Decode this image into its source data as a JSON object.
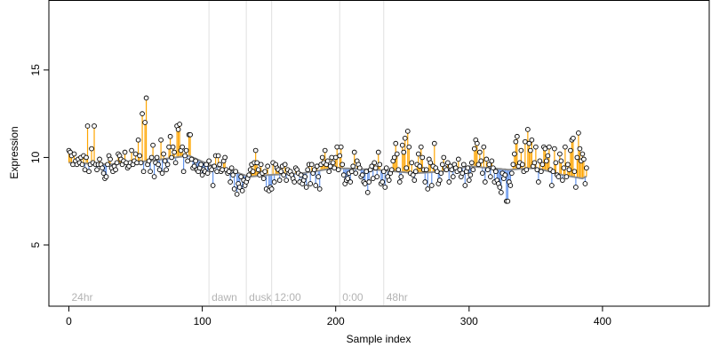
{
  "chart_data": {
    "type": "scatter",
    "title": "",
    "xlabel": "Sample index",
    "ylabel": "Expression",
    "xlim": [
      -15,
      480
    ],
    "ylim": [
      1.5,
      19
    ],
    "x_ticks": [
      0,
      100,
      200,
      300,
      400
    ],
    "y_ticks": [
      5,
      10,
      15
    ],
    "grid": false,
    "baseline_color": "#8c8c8c",
    "above_color": "#ffa500",
    "below_color": "#6495ed",
    "point_fill": "#ffffff",
    "point_stroke": "#000000",
    "vline_color": "#e0e0e0",
    "condition_label_y": 2.0,
    "conditions": [
      {
        "label": "24hr",
        "x": 0,
        "line": false
      },
      {
        "label": "dawn",
        "x": 105,
        "line": true
      },
      {
        "label": "dusk",
        "x": 133,
        "line": true
      },
      {
        "label": "12:00",
        "x": 152,
        "line": true
      },
      {
        "label": "0:00",
        "x": 203,
        "line": true
      },
      {
        "label": "48hr",
        "x": 236,
        "line": true
      }
    ],
    "baseline_anchors": [
      [
        0,
        9.7
      ],
      [
        30,
        9.6
      ],
      [
        60,
        9.8
      ],
      [
        90,
        10.1
      ],
      [
        105,
        9.6
      ],
      [
        120,
        9.3
      ],
      [
        135,
        8.9
      ],
      [
        150,
        9.0
      ],
      [
        175,
        9.1
      ],
      [
        200,
        9.4
      ],
      [
        230,
        9.3
      ],
      [
        260,
        9.1
      ],
      [
        280,
        9.2
      ],
      [
        300,
        9.5
      ],
      [
        330,
        9.3
      ],
      [
        350,
        9.4
      ],
      [
        370,
        9.0
      ],
      [
        385,
        8.8
      ],
      [
        400,
        9.4
      ],
      [
        430,
        9.5
      ],
      [
        465,
        9.7
      ]
    ],
    "values": [
      10.4,
      10.3,
      10.1,
      9.6,
      10.2,
      9.8,
      9.6,
      9.9,
      9.7,
      10.0,
      9.6,
      10.1,
      9.3,
      10.0,
      11.8,
      9.2,
      9.6,
      10.5,
      9.7,
      11.8,
      9.6,
      9.3,
      9.6,
      9.9,
      9.6,
      9.4,
      9.1,
      8.8,
      8.9,
      9.6,
      10.1,
      9.9,
      9.4,
      9.2,
      9.5,
      9.3,
      9.7,
      10.2,
      10.1,
      9.9,
      9.6,
      9.8,
      10.3,
      9.7,
      9.4,
      9.5,
      9.7,
      10.4,
      9.6,
      9.8,
      10.2,
      9.7,
      11.0,
      10.1,
      9.7,
      12.5,
      9.2,
      12.0,
      13.4,
      9.6,
      9.8,
      9.2,
      10.0,
      10.7,
      8.9,
      9.7,
      10.0,
      9.6,
      9.3,
      11.0,
      9.1,
      10.2,
      9.8,
      9.3,
      9.6,
      10.6,
      11.2,
      10.0,
      10.6,
      10.3,
      9.7,
      11.8,
      11.6,
      11.9,
      10.4,
      10.6,
      9.2,
      10.1,
      10.4,
      9.8,
      11.3,
      11.3,
      9.9,
      9.4,
      9.5,
      9.8,
      9.3,
      9.2,
      9.4,
      9.6,
      9.0,
      9.3,
      9.2,
      9.6,
      9.1,
      9.8,
      9.4,
      9.3,
      8.4,
      9.5,
      10.1,
      9.2,
      10.1,
      9.6,
      9.2,
      9.3,
      9.8,
      10.0,
      9.3,
      9.1,
      9.2,
      8.6,
      9.4,
      9.0,
      8.2,
      9.2,
      7.9,
      8.5,
      8.3,
      8.9,
      8.1,
      8.7,
      8.4,
      8.6,
      8.8,
      9.0,
      9.3,
      9.6,
      9.2,
      9.7,
      10.4,
      9.7,
      9.3,
      9.0,
      9.6,
      9.1,
      8.8,
      9.2,
      8.2,
      9.5,
      8.1,
      8.3,
      8.2,
      9.7,
      8.6,
      9.6,
      9.4,
      9.3,
      8.7,
      9.2,
      9.5,
      9.0,
      9.6,
      8.7,
      9.3,
      9.1,
      9.2,
      9.0,
      8.8,
      8.6,
      9.4,
      9.3,
      9.1,
      8.6,
      9.0,
      8.5,
      8.7,
      8.9,
      8.3,
      9.3,
      9.6,
      8.5,
      9.6,
      9.1,
      9.3,
      8.4,
      9.5,
      8.9,
      8.2,
      9.6,
      10.0,
      9.7,
      10.4,
      9.6,
      9.8,
      9.2,
      9.5,
      10.0,
      9.7,
      9.4,
      10.0,
      10.6,
      9.3,
      10.1,
      10.6,
      9.6,
      9.0,
      8.5,
      8.7,
      8.8,
      9.1,
      8.6,
      9.2,
      9.5,
      10.3,
      9.1,
      9.8,
      9.6,
      9.4,
      8.9,
      9.0,
      8.6,
      8.5,
      9.2,
      8.0,
      8.6,
      9.3,
      9.5,
      8.8,
      9.7,
      9.4,
      8.9,
      10.3,
      9.6,
      8.5,
      8.6,
      9.2,
      8.3,
      9.4,
      8.9,
      8.7,
      9.1,
      9.3,
      9.8,
      10.0,
      10.8,
      10.2,
      9.3,
      8.6,
      8.9,
      10.7,
      10.3,
      11.1,
      9.4,
      11.5,
      10.6,
      9.1,
      9.7,
      9.0,
      8.7,
      9.2,
      9.6,
      10.2,
      9.5,
      10.6,
      10.0,
      9.3,
      8.6,
      9.3,
      8.2,
      9.9,
      9.7,
      8.4,
      9.5,
      10.8,
      9.4,
      9.2,
      8.5,
      8.7,
      9.1,
      9.6,
      10.0,
      9.4,
      9.3,
      9.7,
      8.6,
      9.5,
      9.3,
      8.9,
      9.6,
      9.4,
      9.2,
      9.9,
      9.3,
      8.9,
      9.1,
      9.6,
      8.4,
      9.2,
      9.4,
      8.7,
      9.0,
      9.7,
      9.3,
      10.5,
      11.0,
      10.8,
      9.6,
      10.3,
      9.8,
      9.1,
      10.6,
      8.6,
      9.9,
      9.3,
      9.6,
      8.9,
      9.8,
      9.4,
      8.6,
      9.2,
      8.7,
      8.5,
      8.3,
      8.0,
      9.1,
      8.8,
      9.0,
      7.5,
      7.5,
      8.6,
      8.4,
      9.1,
      9.6,
      10.2,
      10.9,
      11.2,
      9.5,
      9.7,
      10.4,
      9.6,
      9.2,
      10.9,
      9.3,
      11.6,
      10.8,
      10.4,
      11.0,
      9.5,
      9.7,
      10.6,
      9.3,
      8.6,
      9.8,
      9.2,
      9.6,
      10.6,
      10.5,
      9.8,
      10.1,
      10.6,
      9.3,
      8.4,
      9.2,
      10.5,
      9.7,
      9.0,
      8.9,
      10.2,
      9.8,
      8.7,
      9.4,
      10.6,
      8.9,
      9.6,
      9.3,
      10.4,
      11.0,
      11.1,
      9.2,
      8.3,
      10.0,
      11.4,
      10.5,
      9.8,
      10.2,
      9.9,
      8.5,
      9.4
    ]
  }
}
